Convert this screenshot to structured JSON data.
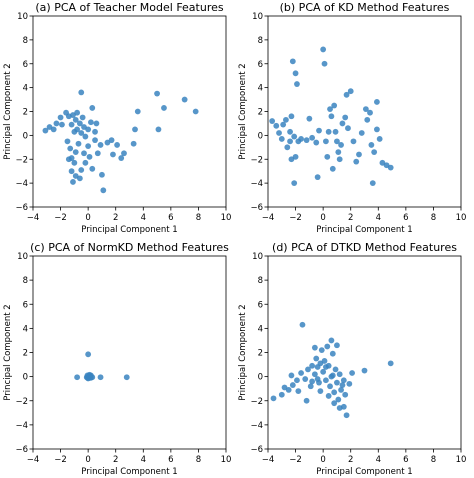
{
  "chart_data": [
    {
      "type": "scatter",
      "title": "(a) PCA of Teacher Model Features",
      "xlabel": "Principal Component 1",
      "ylabel": "Principal Component 2",
      "xlim": [
        -4,
        10
      ],
      "ylim": [
        -6,
        10
      ],
      "xticks": [
        "−4",
        "−2",
        "0",
        "2",
        "4",
        "6",
        "8",
        "10"
      ],
      "yticks": [
        "−6",
        "−4",
        "−2",
        "0",
        "2",
        "4",
        "6",
        "8",
        "10"
      ],
      "color": "#3a84bf",
      "points": [
        [
          -3.1,
          0.4
        ],
        [
          -2.8,
          0.7
        ],
        [
          -2.5,
          0.5
        ],
        [
          -2.3,
          1.0
        ],
        [
          -2.0,
          1.5
        ],
        [
          -1.9,
          0.9
        ],
        [
          -1.6,
          1.9
        ],
        [
          -1.4,
          1.6
        ],
        [
          -1.2,
          0.9
        ],
        [
          -1.1,
          1.7
        ],
        [
          -1.0,
          0.3
        ],
        [
          -0.9,
          1.3
        ],
        [
          -0.8,
          0.5
        ],
        [
          -0.8,
          1.9
        ],
        [
          -0.6,
          1.0
        ],
        [
          -0.5,
          0.2
        ],
        [
          -0.4,
          1.5
        ],
        [
          -0.3,
          0.7
        ],
        [
          -0.2,
          -0.1
        ],
        [
          -0.5,
          3.6
        ],
        [
          0.0,
          0.5
        ],
        [
          0.2,
          1.1
        ],
        [
          0.3,
          2.3
        ],
        [
          0.5,
          0.3
        ],
        [
          0.6,
          1.0
        ],
        [
          -1.5,
          -0.5
        ],
        [
          -1.3,
          -1.1
        ],
        [
          -1.2,
          -1.9
        ],
        [
          -1.0,
          -2.3
        ],
        [
          -0.9,
          -1.4
        ],
        [
          -0.7,
          -0.7
        ],
        [
          -0.5,
          -2.9
        ],
        [
          -0.3,
          -1.5
        ],
        [
          -0.2,
          -2.3
        ],
        [
          0.0,
          -0.9
        ],
        [
          0.1,
          -1.8
        ],
        [
          0.3,
          -2.8
        ],
        [
          0.5,
          -0.4
        ],
        [
          0.7,
          -1.5
        ],
        [
          0.9,
          -0.8
        ],
        [
          1.0,
          -3.3
        ],
        [
          1.1,
          -4.6
        ],
        [
          -1.2,
          -3.0
        ],
        [
          -0.9,
          -3.4
        ],
        [
          -1.1,
          -3.9
        ],
        [
          -0.6,
          -3.6
        ],
        [
          -1.4,
          -2.0
        ],
        [
          1.4,
          -0.6
        ],
        [
          1.7,
          -0.4
        ],
        [
          1.8,
          -1.6
        ],
        [
          2.1,
          -0.8
        ],
        [
          2.4,
          -1.9
        ],
        [
          2.6,
          -1.5
        ],
        [
          3.4,
          0.5
        ],
        [
          3.3,
          -0.7
        ],
        [
          3.6,
          2.0
        ],
        [
          5.0,
          3.5
        ],
        [
          5.1,
          0.5
        ],
        [
          5.5,
          2.3
        ],
        [
          7.0,
          3.0
        ],
        [
          7.8,
          2.0
        ]
      ]
    },
    {
      "type": "scatter",
      "title": "(b) PCA of KD Method Features",
      "xlabel": "Principal Component 1",
      "ylabel": "Principal Component 2",
      "xlim": [
        -4,
        10
      ],
      "ylim": [
        -6,
        10
      ],
      "xticks": [
        "−4",
        "−2",
        "0",
        "2",
        "4",
        "6",
        "8",
        "10"
      ],
      "yticks": [
        "−6",
        "−4",
        "−2",
        "0",
        "2",
        "4",
        "6",
        "8",
        "10"
      ],
      "color": "#3a84bf",
      "points": [
        [
          -3.7,
          1.2
        ],
        [
          -3.4,
          0.8
        ],
        [
          -3.2,
          0.2
        ],
        [
          -3.0,
          -0.3
        ],
        [
          -2.9,
          0.9
        ],
        [
          -2.7,
          1.3
        ],
        [
          -2.6,
          -1.0
        ],
        [
          -2.4,
          0.3
        ],
        [
          -2.3,
          1.6
        ],
        [
          -2.4,
          -0.5
        ],
        [
          -2.1,
          -0.1
        ],
        [
          -2.2,
          6.2
        ],
        [
          -2.0,
          5.2
        ],
        [
          -1.9,
          4.3
        ],
        [
          -2.0,
          -1.8
        ],
        [
          -1.8,
          -0.5
        ],
        [
          -2.3,
          -2.0
        ],
        [
          -2.1,
          -4.0
        ],
        [
          -1.6,
          -0.3
        ],
        [
          -1.2,
          -0.4
        ],
        [
          -0.8,
          -0.2
        ],
        [
          -0.5,
          -0.6
        ],
        [
          -0.3,
          0.4
        ],
        [
          0.0,
          7.2
        ],
        [
          0.1,
          6.0
        ],
        [
          0.2,
          -0.5
        ],
        [
          0.4,
          0.3
        ],
        [
          0.5,
          2.2
        ],
        [
          0.6,
          1.6
        ],
        [
          0.8,
          2.5
        ],
        [
          0.9,
          0.3
        ],
        [
          1.0,
          -0.5
        ],
        [
          1.1,
          -1.4
        ],
        [
          1.3,
          -0.8
        ],
        [
          1.4,
          1.0
        ],
        [
          0.7,
          -2.8
        ],
        [
          1.2,
          -2.0
        ],
        [
          0.3,
          -1.8
        ],
        [
          -0.4,
          -3.5
        ],
        [
          -1.0,
          1.4
        ],
        [
          1.6,
          1.5
        ],
        [
          1.8,
          0.6
        ],
        [
          2.0,
          3.7
        ],
        [
          2.2,
          -0.5
        ],
        [
          2.4,
          -2.2
        ],
        [
          2.6,
          -1.6
        ],
        [
          2.8,
          0.2
        ],
        [
          3.1,
          2.2
        ],
        [
          3.2,
          1.3
        ],
        [
          3.4,
          1.9
        ],
        [
          3.5,
          -0.8
        ],
        [
          3.7,
          -1.4
        ],
        [
          3.9,
          0.5
        ],
        [
          4.1,
          -0.3
        ],
        [
          4.3,
          -2.3
        ],
        [
          4.6,
          -2.5
        ],
        [
          4.9,
          -2.7
        ],
        [
          3.6,
          -4.0
        ],
        [
          3.9,
          2.8
        ],
        [
          1.7,
          3.4
        ]
      ]
    },
    {
      "type": "scatter",
      "title": "(c) PCA of NormKD Method Features",
      "xlabel": "Principal Component 1",
      "ylabel": "Principal Component 2",
      "xlim": [
        -4,
        10
      ],
      "ylim": [
        -6,
        10
      ],
      "xticks": [
        "−4",
        "−2",
        "0",
        "2",
        "4",
        "6",
        "8",
        "10"
      ],
      "yticks": [
        "−6",
        "−4",
        "−2",
        "0",
        "2",
        "4",
        "6",
        "8",
        "10"
      ],
      "color": "#3a84bf",
      "points": [
        [
          -0.8,
          -0.05
        ],
        [
          0.0,
          1.85
        ],
        [
          -0.05,
          0.1
        ],
        [
          0.05,
          0.0
        ],
        [
          0.1,
          -0.1
        ],
        [
          -0.1,
          -0.05
        ],
        [
          0.15,
          0.05
        ],
        [
          0.0,
          -0.15
        ],
        [
          0.2,
          0.1
        ],
        [
          0.1,
          0.15
        ],
        [
          -0.05,
          -0.1
        ],
        [
          0.05,
          0.05
        ],
        [
          0.3,
          -0.05
        ],
        [
          0.2,
          -0.1
        ],
        [
          0.9,
          -0.05
        ],
        [
          2.8,
          -0.05
        ]
      ]
    },
    {
      "type": "scatter",
      "title": "(d) PCA of DTKD Method Features",
      "xlabel": "Principal Component 1",
      "ylabel": "Principal Component 2",
      "xlim": [
        -4,
        10
      ],
      "ylim": [
        -6,
        10
      ],
      "xticks": [
        "−4",
        "−2",
        "0",
        "2",
        "4",
        "6",
        "8",
        "10"
      ],
      "yticks": [
        "−6",
        "−4",
        "−2",
        "0",
        "2",
        "4",
        "6",
        "8",
        "10"
      ],
      "color": "#3a84bf",
      "points": [
        [
          -3.6,
          -1.8
        ],
        [
          -3.0,
          -1.5
        ],
        [
          -2.5,
          -1.1
        ],
        [
          -2.2,
          -0.7
        ],
        [
          -1.9,
          -0.3
        ],
        [
          -1.6,
          0.3
        ],
        [
          -1.3,
          -0.2
        ],
        [
          -1.1,
          0.6
        ],
        [
          -0.9,
          -0.8
        ],
        [
          -0.8,
          0.9
        ],
        [
          -0.6,
          0.2
        ],
        [
          -0.5,
          1.5
        ],
        [
          -0.4,
          0.8
        ],
        [
          -0.3,
          -0.5
        ],
        [
          -0.2,
          1.1
        ],
        [
          -0.1,
          2.2
        ],
        [
          0.0,
          0.4
        ],
        [
          0.1,
          1.3
        ],
        [
          0.2,
          -0.3
        ],
        [
          0.3,
          2.5
        ],
        [
          0.4,
          0.9
        ],
        [
          0.5,
          -0.8
        ],
        [
          0.6,
          0.0
        ],
        [
          0.7,
          1.9
        ],
        [
          0.8,
          -1.3
        ],
        [
          0.9,
          0.6
        ],
        [
          1.0,
          -0.5
        ],
        [
          1.1,
          -1.9
        ],
        [
          1.2,
          0.2
        ],
        [
          1.3,
          -1.1
        ],
        [
          1.4,
          -0.7
        ],
        [
          1.5,
          -2.5
        ],
        [
          1.6,
          -1.5
        ],
        [
          1.7,
          -3.2
        ],
        [
          -1.5,
          4.3
        ],
        [
          -0.6,
          2.4
        ],
        [
          0.6,
          3.0
        ],
        [
          1.0,
          2.6
        ],
        [
          -2.3,
          0.1
        ],
        [
          -2.8,
          -0.9
        ],
        [
          -1.8,
          -1.2
        ],
        [
          -0.8,
          -0.4
        ],
        [
          0.4,
          -1.6
        ],
        [
          1.9,
          -0.6
        ],
        [
          2.1,
          0.3
        ],
        [
          3.0,
          0.5
        ],
        [
          4.9,
          1.1
        ],
        [
          0.8,
          -2.2
        ],
        [
          -0.2,
          -1.2
        ],
        [
          0.2,
          0.8
        ],
        [
          1.2,
          -2.6
        ],
        [
          -1.2,
          -2.0
        ],
        [
          -0.4,
          -0.2
        ],
        [
          0.7,
          0.1
        ],
        [
          1.5,
          -0.3
        ]
      ]
    }
  ]
}
